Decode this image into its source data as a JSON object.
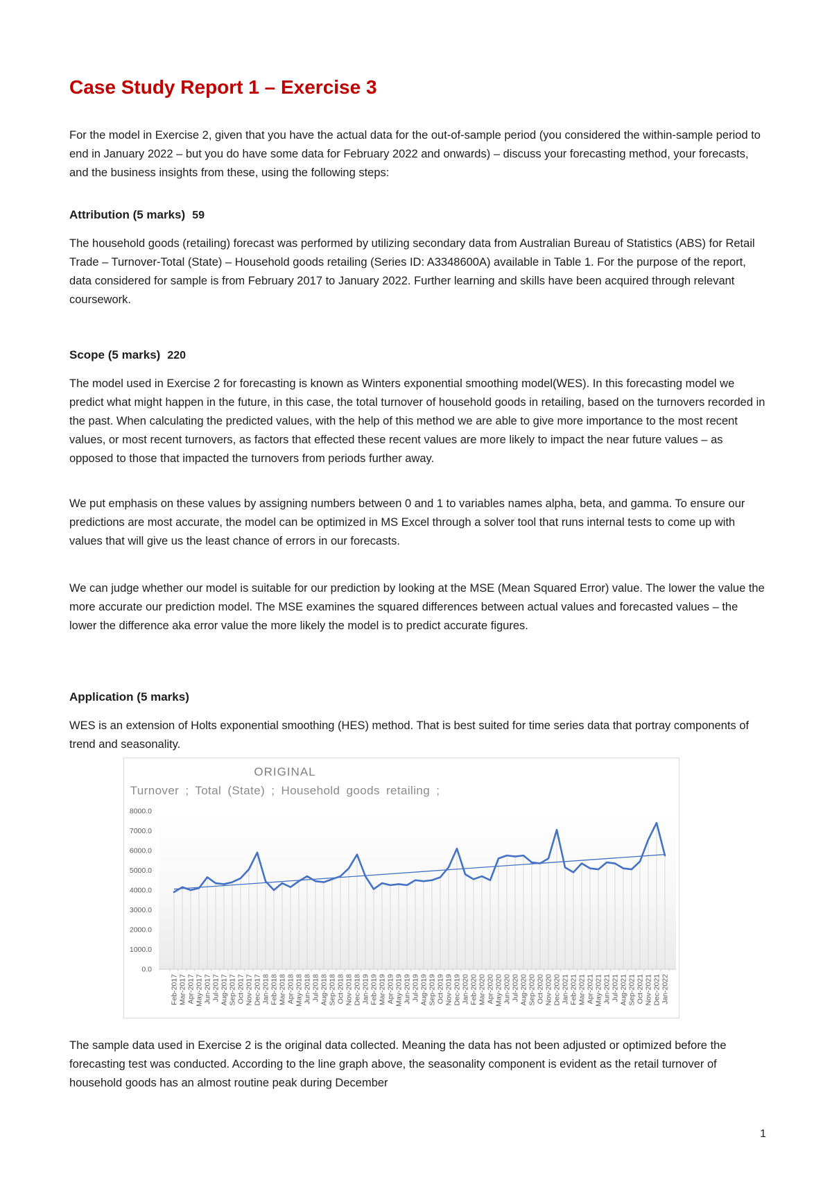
{
  "page": {
    "title": "Case Study Report 1 – Exercise 3",
    "page_number": "1"
  },
  "sections": {
    "intro": "For the model in Exercise 2, given that you have the actual data for the out-of-sample period (you considered the within-sample period to end in January 2022 – but you do have some data for February 2022 and onwards) – discuss your forecasting method, your forecasts, and the business insights from these, using the following steps:",
    "attribution": {
      "heading": "Attribution (5 marks)",
      "note": "59",
      "body": "The household goods (retailing) forecast was performed by utilizing secondary data from Australian Bureau of Statistics (ABS) for Retail Trade – Turnover-Total (State) – Household goods retailing (Series ID: A3348600A) available in Table 1. For the purpose of the report, data considered for sample is from February 2017 to January 2022. Further learning and skills have been acquired through relevant coursework."
    },
    "scope": {
      "heading": "Scope (5 marks)",
      "note": "220",
      "p1": "The model used in Exercise 2 for forecasting is known as Winters exponential smoothing model(WES). In this forecasting model we predict what might happen in the future, in this case, the total turnover of household goods in retailing, based on the turnovers recorded in the past. When calculating the predicted values, with the help of this method we are able to give more importance to the most recent values, or most recent turnovers, as factors that effected these recent values are more likely to impact the near future values – as opposed to those that impacted the turnovers from periods further away.",
      "p2": "We put emphasis on these values by assigning numbers between 0 and 1 to variables names alpha, beta, and gamma. To ensure our predictions are most accurate, the model can be optimized in MS Excel through a solver tool that runs internal tests to come up with values that will give us the least chance of errors in our forecasts.",
      "p3": "We can judge whether our model is suitable for our prediction by looking at the MSE (Mean Squared Error) value. The lower the value the more accurate our prediction model. The MSE examines the squared differences between actual values and forecasted values – the lower the difference aka error value the more likely the model is to predict accurate figures."
    },
    "application": {
      "heading": "Application (5 marks)",
      "p1": "WES is an extension of Holts exponential smoothing (HES) method. That is best suited for time series data that portray components of trend and seasonality.",
      "p2": "The sample data used in Exercise 2 is the original data collected. Meaning the data has not been adjusted or optimized before the forecasting test was conducted. According to the line graph above, the seasonality component is evident as the retail turnover of household goods has an almost routine peak during December"
    }
  },
  "chart_data": {
    "type": "line",
    "title": "ORIGINAL",
    "subtitle": "Turnover ; Total (State) ; Household goods retailing ;",
    "xlabel": "",
    "ylabel": "",
    "ylim": [
      0,
      8000
    ],
    "y_tick_step": 1000,
    "y_tick_labels": [
      "8000.0",
      "7000.0",
      "6000.0",
      "5000.0",
      "4000.0",
      "3000.0",
      "2000.0",
      "1000.0",
      "0.0"
    ],
    "grid": "drop-lines-per-category",
    "legend": "none",
    "categories": [
      "Feb-2017",
      "Mar-2017",
      "Apr-2017",
      "May-2017",
      "Jun-2017",
      "Jul-2017",
      "Aug-2017",
      "Sep-2017",
      "Oct-2017",
      "Nov-2017",
      "Dec-2017",
      "Jan-2018",
      "Feb-2018",
      "Mar-2018",
      "Apr-2018",
      "May-2018",
      "Jun-2018",
      "Jul-2018",
      "Aug-2018",
      "Sep-2018",
      "Oct-2018",
      "Nov-2018",
      "Dec-2018",
      "Jan-2019",
      "Feb-2019",
      "Mar-2019",
      "Apr-2019",
      "May-2019",
      "Jun-2019",
      "Jul-2019",
      "Aug-2019",
      "Sep-2019",
      "Oct-2019",
      "Nov-2019",
      "Dec-2019",
      "Jan-2020",
      "Feb-2020",
      "Mar-2020",
      "Apr-2020",
      "May-2020",
      "Jun-2020",
      "Jul-2020",
      "Aug-2020",
      "Sep-2020",
      "Oct-2020",
      "Nov-2020",
      "Dec-2020",
      "Jan-2021",
      "Feb-2021",
      "Mar-2021",
      "Apr-2021",
      "May-2021",
      "Jun-2021",
      "Jul-2021",
      "Aug-2021",
      "Sep-2021",
      "Oct-2021",
      "Nov-2021",
      "Dec-2021",
      "Jan-2022"
    ],
    "series": [
      {
        "name": "Turnover ; Total (State) ; Household goods retailing",
        "values": [
          3900,
          4150,
          4000,
          4100,
          4650,
          4350,
          4300,
          4400,
          4600,
          5050,
          5900,
          4450,
          4000,
          4350,
          4150,
          4450,
          4700,
          4450,
          4400,
          4550,
          4700,
          5100,
          5800,
          4700,
          4050,
          4350,
          4250,
          4300,
          4250,
          4500,
          4450,
          4500,
          4650,
          5150,
          6100,
          4800,
          4550,
          4700,
          4500,
          5600,
          5750,
          5700,
          5750,
          5400,
          5350,
          5600,
          7050,
          5150,
          4900,
          5350,
          5100,
          5050,
          5400,
          5350,
          5100,
          5050,
          5450,
          6550,
          7400,
          5750
        ]
      }
    ],
    "trendline": {
      "type": "linear",
      "endpoints": [
        4050,
        5800
      ]
    },
    "colors": {
      "series": "#4472C4",
      "trendline": "#4472C4",
      "dropline": "#d9d9d9",
      "axis_line": "#c9c9c9",
      "axis_text": "#595959",
      "title_text": "#808080"
    }
  }
}
